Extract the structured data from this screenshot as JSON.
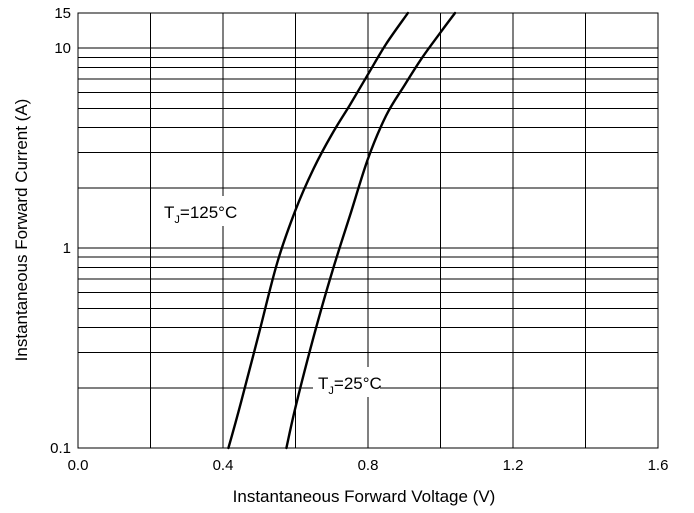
{
  "chart_data": {
    "type": "line",
    "xlabel": "Instantaneous Forward Voltage (V)",
    "ylabel": "Instantaneous Forward Current (A)",
    "x_scale": "linear",
    "y_scale": "log",
    "xlim": [
      0.0,
      1.6
    ],
    "ylim": [
      0.1,
      15
    ],
    "x_ticks": [
      0.0,
      0.4,
      0.8,
      1.2,
      1.6
    ],
    "x_tick_labels": [
      "0.0",
      "0.4",
      "0.8",
      "1.2",
      "1.6"
    ],
    "y_tick_labels": [
      {
        "value": 0.1,
        "label": "0.1"
      },
      {
        "value": 1,
        "label": "1"
      },
      {
        "value": 10,
        "label": "10"
      },
      {
        "value": 15,
        "label": "15"
      }
    ],
    "grid": true,
    "x_grid": [
      0.0,
      0.2,
      0.4,
      0.6,
      0.8,
      1.0,
      1.2,
      1.4,
      1.6
    ],
    "y_grid": [
      0.1,
      0.2,
      0.3,
      0.4,
      0.5,
      0.6,
      0.7,
      0.8,
      0.9,
      1,
      2,
      3,
      4,
      5,
      6,
      7,
      8,
      9,
      10,
      15
    ],
    "series": [
      {
        "name": "TJ=125°C",
        "label_main": "T",
        "label_sub": "J",
        "label_rest": "=125°C",
        "x": [
          0.415,
          0.45,
          0.5,
          0.55,
          0.6,
          0.65,
          0.7,
          0.75,
          0.8,
          0.85,
          0.91
        ],
        "y": [
          0.1,
          0.17,
          0.38,
          0.85,
          1.55,
          2.5,
          3.7,
          5.2,
          7.4,
          10.5,
          15
        ]
      },
      {
        "name": "TJ=25°C",
        "label_main": "T",
        "label_sub": "J",
        "label_rest": "=25°C",
        "x": [
          0.575,
          0.6,
          0.65,
          0.7,
          0.75,
          0.8,
          0.85,
          0.9,
          0.95,
          1.0,
          1.04
        ],
        "y": [
          0.1,
          0.16,
          0.36,
          0.75,
          1.45,
          2.8,
          4.6,
          6.5,
          9.0,
          12.0,
          15
        ]
      }
    ]
  }
}
